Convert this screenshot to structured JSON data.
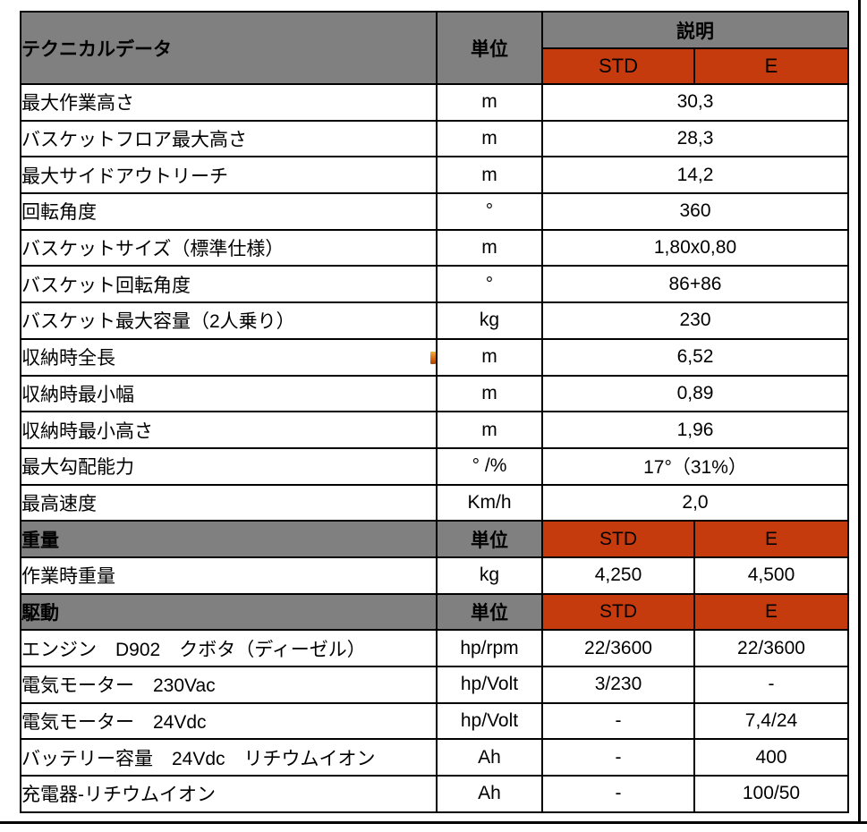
{
  "colors": {
    "header_gray": "#808080",
    "accent_orange": "#C63B0E",
    "border_black": "#000000",
    "row_white": "#FFFFFF"
  },
  "icons": {
    "cell_marker": "orange-comment-marker"
  },
  "table": {
    "header": {
      "title": "テクニカルデータ",
      "unit": "単位",
      "description": "説明",
      "std": "STD",
      "e": "E"
    },
    "rows": [
      {
        "type": "span",
        "label": "最大作業高さ",
        "unit": "m",
        "value": "30,3"
      },
      {
        "type": "span",
        "label": "バスケットフロア最大高さ",
        "unit": "m",
        "value": "28,3"
      },
      {
        "type": "span",
        "label": "最大サイドアウトリーチ",
        "unit": "m",
        "value": "14,2"
      },
      {
        "type": "span",
        "label": "回転角度",
        "unit": "°",
        "value": "360"
      },
      {
        "type": "span",
        "label": "バスケットサイズ（標準仕様）",
        "unit": "m",
        "value": "1,80x0,80"
      },
      {
        "type": "span",
        "label": "バスケット回転角度",
        "unit": "°",
        "value": "86+86"
      },
      {
        "type": "span",
        "label": "バスケット最大容量（2人乗り）",
        "unit": "kg",
        "value": "230"
      },
      {
        "type": "span",
        "label": "収納時全長",
        "unit": "m",
        "value": "6,52",
        "marker": true
      },
      {
        "type": "span",
        "label": "収納時最小幅",
        "unit": "m",
        "value": "0,89"
      },
      {
        "type": "span",
        "label": "収納時最小高さ",
        "unit": "m",
        "value": "1,96"
      },
      {
        "type": "span",
        "label": "最大勾配能力",
        "unit": "° /%",
        "value": "17°（31%）"
      },
      {
        "type": "span",
        "label": "最高速度",
        "unit": "Km/h",
        "value": "2,0"
      },
      {
        "type": "section",
        "label": "重量",
        "unit": "単位",
        "std": "STD",
        "e": "E"
      },
      {
        "type": "two",
        "label": "作業時重量",
        "unit": "kg",
        "std": "4,250",
        "e": "4,500"
      },
      {
        "type": "section",
        "label": "駆動",
        "unit": "単位",
        "std": "STD",
        "e": "E"
      },
      {
        "type": "two",
        "label": "エンジン　D902　クボタ（ディーゼル）",
        "unit": "hp/rpm",
        "std": "22/3600",
        "e": "22/3600"
      },
      {
        "type": "two",
        "label": "電気モーター　230Vac",
        "unit": "hp/Volt",
        "std": "3/230",
        "e": "-"
      },
      {
        "type": "two",
        "label": "電気モーター　24Vdc",
        "unit": "hp/Volt",
        "std": "-",
        "e": "7,4/24"
      },
      {
        "type": "two",
        "label": "バッテリー容量　24Vdc　リチウムイオン",
        "unit": "Ah",
        "std": "-",
        "e": "400"
      },
      {
        "type": "two",
        "label": "充電器-リチウムイオン",
        "unit": "Ah",
        "std": "-",
        "e": "100/50"
      }
    ]
  }
}
